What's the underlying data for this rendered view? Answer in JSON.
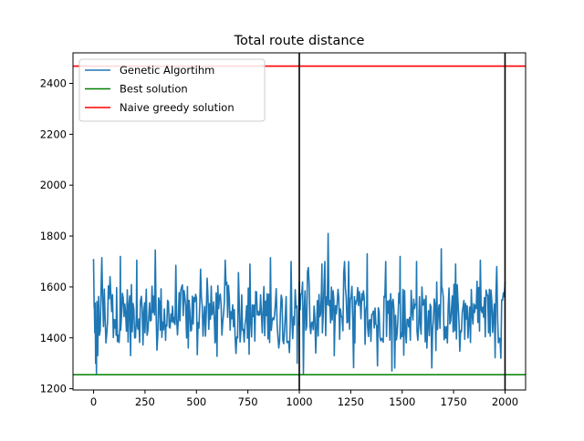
{
  "chart_data": {
    "type": "line",
    "title": "Total route distance",
    "xlabel": "",
    "ylabel": "",
    "xlim": [
      -100,
      2100
    ],
    "ylim": [
      1195,
      2520
    ],
    "xticks": [
      0,
      250,
      500,
      750,
      1000,
      1250,
      1500,
      1750,
      2000
    ],
    "yticks": [
      1200,
      1400,
      1600,
      1800,
      2000,
      2200,
      2400
    ],
    "grid": false,
    "legend_position": "top-left",
    "colors": {
      "genetic": "#1f77b4",
      "best": "#008000",
      "greedy": "#ff0000",
      "vlines": "#000000"
    },
    "series": [
      {
        "name": "Genetic Algortihm",
        "x_start": 0,
        "x_end": 2000,
        "keypoints": [
          [
            0,
            1710
          ],
          [
            3,
            1520
          ],
          [
            6,
            1420
          ],
          [
            10,
            1300
          ],
          [
            14,
            1260
          ],
          [
            20,
            1330
          ],
          [
            28,
            1410
          ],
          [
            40,
            1715
          ],
          [
            60,
            1380
          ],
          [
            80,
            1640
          ],
          [
            110,
            1410
          ],
          [
            130,
            1720
          ],
          [
            180,
            1330
          ],
          [
            210,
            1705
          ],
          [
            250,
            1420
          ],
          [
            300,
            1745
          ],
          [
            350,
            1390
          ],
          [
            400,
            1685
          ],
          [
            460,
            1360
          ],
          [
            520,
            1670
          ],
          [
            590,
            1380
          ],
          [
            640,
            1705
          ],
          [
            700,
            1400
          ],
          [
            760,
            1690
          ],
          [
            820,
            1420
          ],
          [
            860,
            1715
          ],
          [
            900,
            1360
          ],
          [
            960,
            1700
          ],
          [
            990,
            1300
          ],
          [
            1000,
            1620
          ],
          [
            1020,
            1260
          ],
          [
            1040,
            1660
          ],
          [
            1080,
            1340
          ],
          [
            1110,
            1690
          ],
          [
            1140,
            1810
          ],
          [
            1170,
            1330
          ],
          [
            1220,
            1700
          ],
          [
            1270,
            1380
          ],
          [
            1330,
            1730
          ],
          [
            1380,
            1290
          ],
          [
            1420,
            1700
          ],
          [
            1450,
            1270
          ],
          [
            1490,
            1720
          ],
          [
            1520,
            1380
          ],
          [
            1570,
            1700
          ],
          [
            1620,
            1360
          ],
          [
            1690,
            1750
          ],
          [
            1720,
            1380
          ],
          [
            1760,
            1690
          ],
          [
            1820,
            1400
          ],
          [
            1880,
            1705
          ],
          [
            1920,
            1420
          ],
          [
            1960,
            1680
          ],
          [
            1980,
            1320
          ],
          [
            2000,
            1620
          ]
        ]
      },
      {
        "name": "Best solution",
        "type": "hline",
        "y": 1255
      },
      {
        "name": "Naive greedy solution",
        "type": "hline",
        "y": 2468
      }
    ],
    "vlines": [
      1000,
      2000
    ]
  }
}
